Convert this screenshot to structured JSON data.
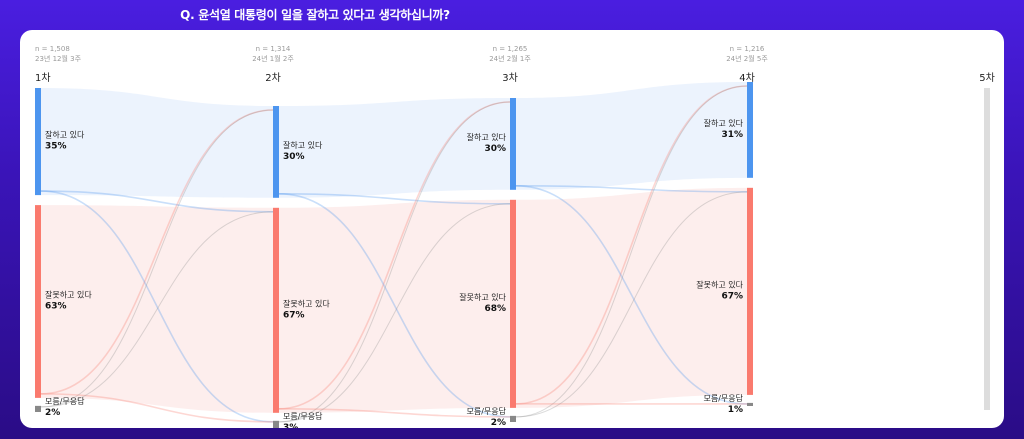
{
  "title": "Q. 윤석열 대통령이 일을 잘하고 있다고 생각하십니까?",
  "colors": {
    "good": "#4d95ef",
    "bad": "#fa7a6e",
    "unknown": "#888888",
    "good_band": "#eaf2fd",
    "bad_band": "#fdeceb",
    "future": "#dddddd"
  },
  "chart_data": {
    "type": "sankey",
    "title": "Q. 윤석열 대통령이 일을 잘하고 있다고 생각하십니까?",
    "categories": [
      "잘하고 있다",
      "잘못하고 있다",
      "모름/무응답"
    ],
    "waves": [
      {
        "label": "1차",
        "n": "n = 1,508",
        "date": "23년 12월 3주",
        "values": [
          35,
          63,
          2
        ],
        "value_labels": [
          "35%",
          "63%",
          "2%"
        ]
      },
      {
        "label": "2차",
        "n": "n = 1,314",
        "date": "24년 1월 2주",
        "values": [
          30,
          67,
          3
        ],
        "value_labels": [
          "30%",
          "67%",
          "3%"
        ]
      },
      {
        "label": "3차",
        "n": "n = 1,265",
        "date": "24년 2월 1주",
        "values": [
          30,
          68,
          2
        ],
        "value_labels": [
          "30%",
          "68%",
          "2%"
        ]
      },
      {
        "label": "4차",
        "n": "n = 1,216",
        "date": "24년 2월 5주",
        "values": [
          31,
          67,
          1
        ],
        "value_labels": [
          "31%",
          "67%",
          "1%"
        ]
      },
      {
        "label": "5차",
        "n": "",
        "date": "",
        "values": [],
        "value_labels": []
      }
    ]
  }
}
